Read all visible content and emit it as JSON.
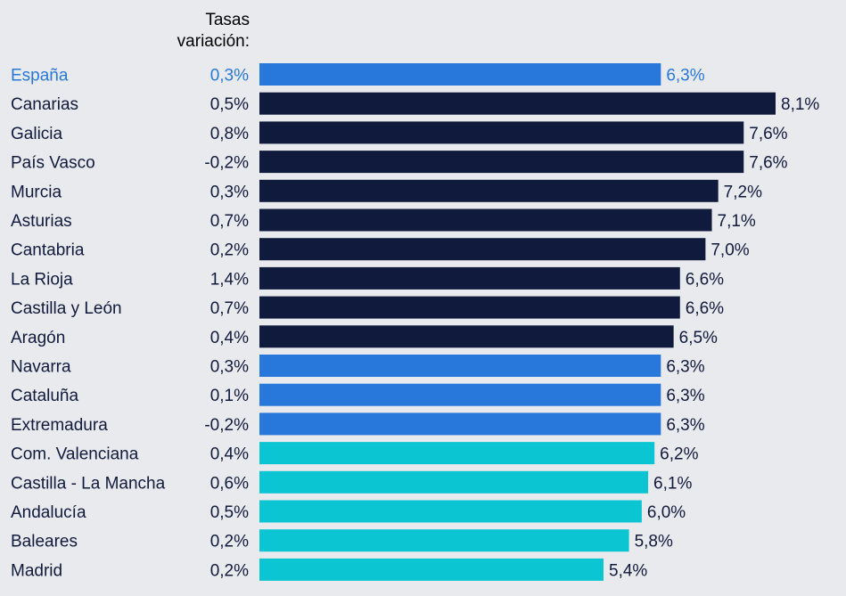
{
  "chart_data": {
    "type": "bar",
    "orientation": "horizontal",
    "header": {
      "line1": "Tasas",
      "line2": "variación:"
    },
    "unit_suffix": "%",
    "decimal_separator": ",",
    "xlim": [
      0,
      8.1
    ],
    "categories": [
      "España",
      "Canarias",
      "Galicia",
      "País Vasco",
      "Murcia",
      "Asturias",
      "Cantabria",
      "La Rioja",
      "Castilla y León",
      "Aragón",
      "Navarra",
      "Cataluña",
      "Extremadura",
      "Com. Valenciana",
      "Castilla - La Mancha",
      "Andalucía",
      "Baleares",
      "Madrid"
    ],
    "values": [
      6.3,
      8.1,
      7.6,
      7.6,
      7.2,
      7.1,
      7.0,
      6.6,
      6.6,
      6.5,
      6.3,
      6.3,
      6.3,
      6.2,
      6.1,
      6.0,
      5.8,
      5.4
    ],
    "value_labels": [
      "6,3%",
      "8,1%",
      "7,6%",
      "7,6%",
      "7,2%",
      "7,1%",
      "7,0%",
      "6,6%",
      "6,6%",
      "6,5%",
      "6,3%",
      "6,3%",
      "6,3%",
      "6,2%",
      "6,1%",
      "6,0%",
      "5,8%",
      "5,4%"
    ],
    "variation_rates": [
      "0,3%",
      "0,5%",
      "0,8%",
      "-0,2%",
      "0,3%",
      "0,7%",
      "0,2%",
      "1,4%",
      "0,7%",
      "0,4%",
      "0,3%",
      "0,1%",
      "-0,2%",
      "0,4%",
      "0,6%",
      "0,5%",
      "0,2%",
      "0,2%"
    ],
    "bar_groups": [
      "highlight",
      "high",
      "high",
      "high",
      "high",
      "high",
      "high",
      "high",
      "high",
      "high",
      "mid",
      "mid",
      "mid",
      "low",
      "low",
      "low",
      "low",
      "low"
    ],
    "colors": {
      "highlight": "#2878dc",
      "high": "#101a3c",
      "mid": "#2878dc",
      "low": "#0bc6d2",
      "text": "#101a3c",
      "highlight_text": "#2878dc"
    }
  }
}
